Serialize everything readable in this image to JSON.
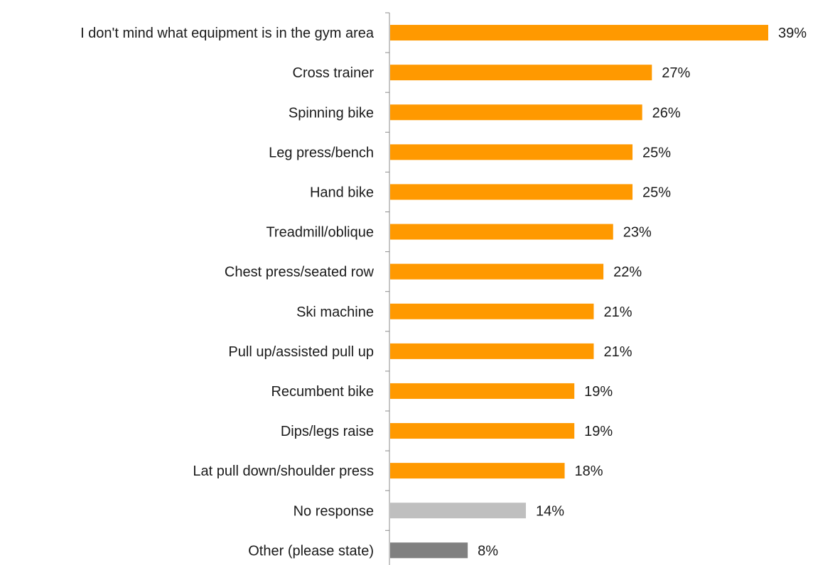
{
  "chart_data": {
    "type": "bar",
    "orientation": "horizontal",
    "categories": [
      "I don't mind what equipment is in the gym area",
      "Cross trainer",
      "Spinning bike",
      "Leg press/bench",
      "Hand bike",
      "Treadmill/oblique",
      "Chest press/seated row",
      "Ski machine",
      "Pull up/assisted pull up",
      "Recumbent bike",
      "Dips/legs raise",
      "Lat pull down/shoulder press",
      "No response",
      "Other (please state)"
    ],
    "values": [
      39,
      27,
      26,
      25,
      25,
      23,
      22,
      21,
      21,
      19,
      19,
      18,
      14,
      8
    ],
    "value_labels": [
      "39%",
      "27%",
      "26%",
      "25%",
      "25%",
      "23%",
      "22%",
      "21%",
      "21%",
      "19%",
      "19%",
      "18%",
      "14%",
      "8%"
    ],
    "bar_colors": [
      "#ff9900",
      "#ff9900",
      "#ff9900",
      "#ff9900",
      "#ff9900",
      "#ff9900",
      "#ff9900",
      "#ff9900",
      "#ff9900",
      "#ff9900",
      "#ff9900",
      "#ff9900",
      "#bfbfbf",
      "#808080"
    ],
    "unit": "%",
    "xlim": [
      0,
      40
    ],
    "grid": false,
    "legend": "none",
    "title": "",
    "xlabel": "",
    "ylabel": ""
  }
}
